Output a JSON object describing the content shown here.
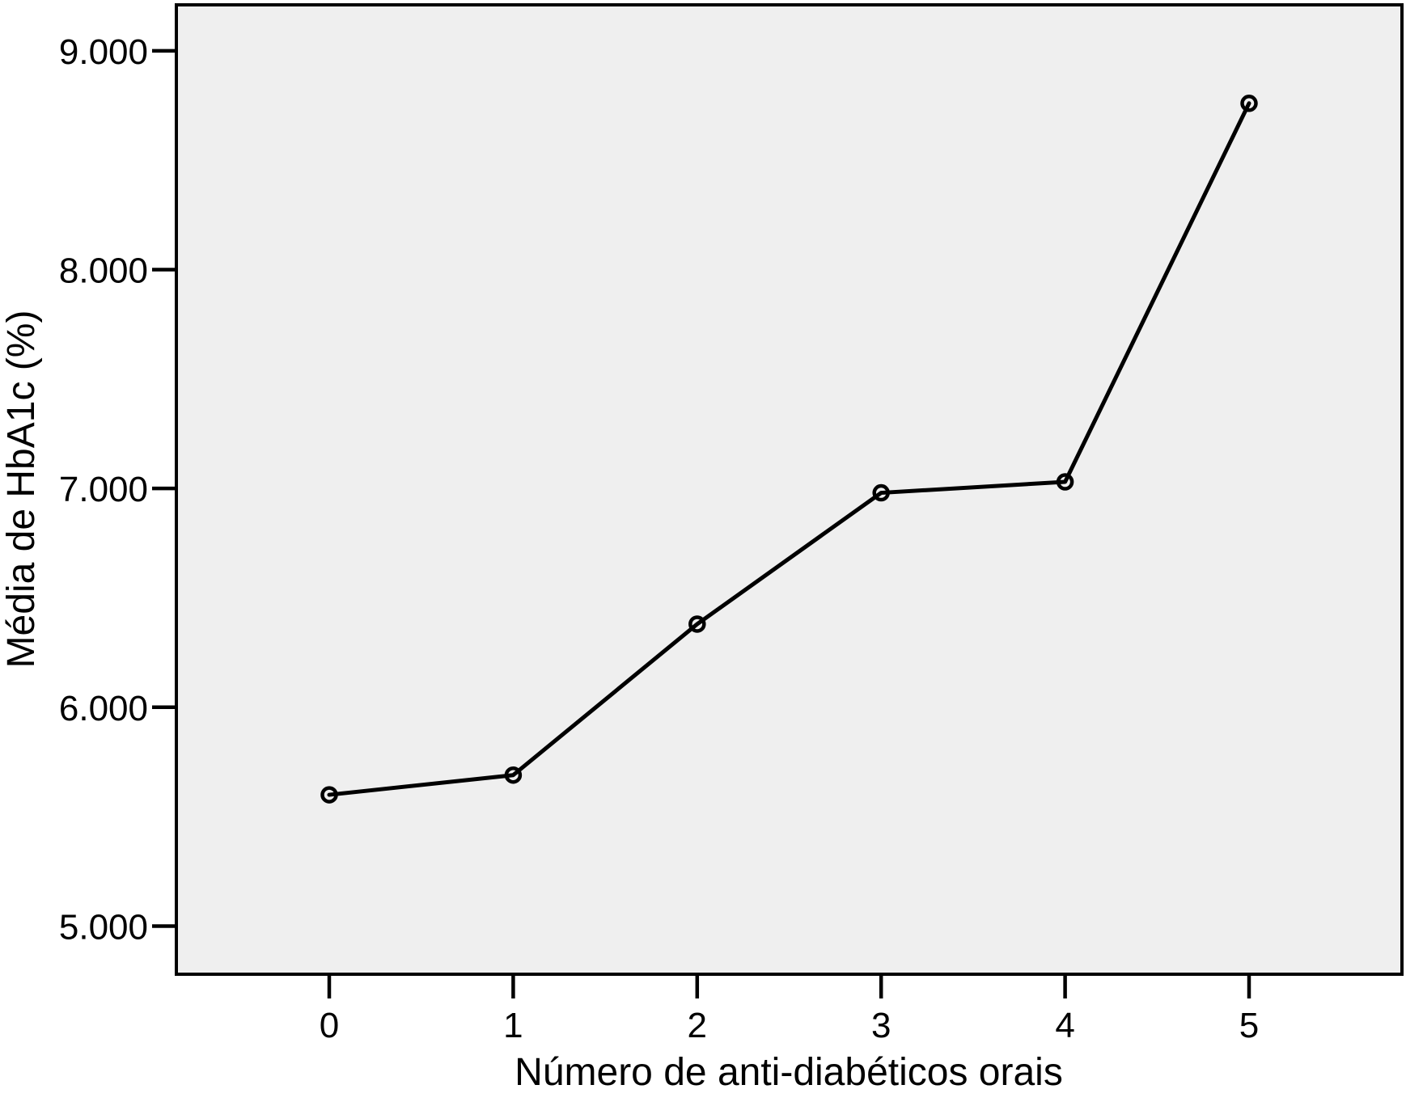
{
  "chart_data": {
    "type": "line",
    "title": "",
    "xlabel": "Número de anti-diabéticos orais",
    "ylabel": "Média de HbA1c (%)",
    "categories": [
      "0",
      "1",
      "2",
      "3",
      "4",
      "5"
    ],
    "series": [
      {
        "name": "Média de HbA1c (%)",
        "values": [
          5.6,
          5.69,
          6.38,
          6.98,
          7.03,
          8.76
        ]
      }
    ],
    "y_ticks": [
      {
        "value": 5,
        "label": "5.000"
      },
      {
        "value": 6,
        "label": "6.000"
      },
      {
        "value": 7,
        "label": "7.000"
      },
      {
        "value": 8,
        "label": "8.000"
      },
      {
        "value": 9,
        "label": "9.000"
      }
    ],
    "ylim": [
      4.78,
      9.21
    ],
    "grid": false,
    "legend_position": "none",
    "marker": "open-circle",
    "colors": {
      "line": "#000000",
      "marker_stroke": "#000000",
      "plot_background": "#efefef",
      "frame": "#000000",
      "text": "#000000",
      "page_background": "#ffffff"
    }
  }
}
